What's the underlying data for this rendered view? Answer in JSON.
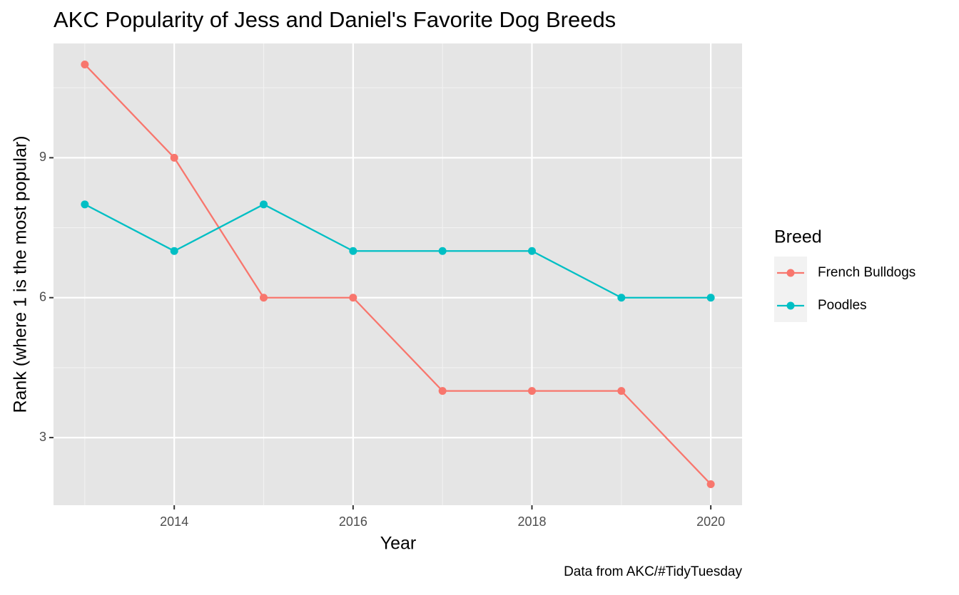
{
  "chart_data": {
    "type": "line",
    "title": "AKC Popularity of Jess and Daniel's Favorite Dog Breeds",
    "x_label": "Year",
    "y_label": "Rank (where 1 is the most popular)",
    "caption": "Data from AKC/#TidyTuesday",
    "legend_title": "Breed",
    "legend_position": "right",
    "grid": true,
    "x": [
      2013,
      2014,
      2015,
      2016,
      2017,
      2018,
      2019,
      2020
    ],
    "series": [
      {
        "name": "French Bulldogs",
        "color": "#F8766D",
        "values": [
          11,
          9,
          6,
          6,
          4,
          4,
          4,
          2
        ]
      },
      {
        "name": "Poodles",
        "color": "#00BFC4",
        "values": [
          8,
          7,
          8,
          7,
          7,
          7,
          6,
          6
        ]
      }
    ],
    "xlim": [
      2012.65,
      2020.35
    ],
    "xticks": [
      2014,
      2016,
      2018,
      2020
    ],
    "ylim": [
      1.55,
      11.45
    ],
    "yticks": [
      3,
      6,
      9
    ]
  }
}
